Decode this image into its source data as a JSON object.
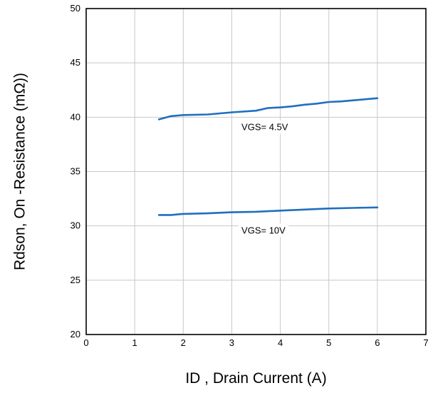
{
  "chart_data": {
    "type": "line",
    "xlabel": "ID , Drain Current (A)",
    "ylabel": "Rdson, On -Resistance (mΩ))",
    "xlim": [
      0,
      7
    ],
    "ylim": [
      20,
      50
    ],
    "x_ticks": [
      0,
      1,
      2,
      3,
      4,
      5,
      6,
      7
    ],
    "y_ticks": [
      20,
      25,
      30,
      35,
      40,
      45,
      50
    ],
    "grid": true,
    "line_color": "#1f6fc0",
    "series": [
      {
        "x": [
          1.5,
          1.75,
          2.0,
          2.5,
          3.0,
          3.5,
          3.75,
          4.0,
          4.25,
          4.5,
          4.75,
          5.0,
          5.25,
          5.5,
          5.75,
          6.0
        ],
        "values": [
          39.8,
          40.1,
          40.2,
          40.25,
          40.45,
          40.6,
          40.85,
          40.9,
          41.0,
          41.15,
          41.25,
          41.4,
          41.45,
          41.55,
          41.65,
          41.75
        ]
      },
      {
        "x": [
          1.5,
          1.75,
          2.0,
          2.5,
          3.0,
          3.5,
          4.0,
          4.5,
          5.0,
          5.5,
          6.0
        ],
        "values": [
          31.0,
          31.0,
          31.1,
          31.15,
          31.25,
          31.3,
          31.4,
          31.5,
          31.6,
          31.65,
          31.7
        ]
      }
    ],
    "annotations": [
      {
        "text": "VGS= 4.5V",
        "x": 3.2,
        "y": 38.8
      },
      {
        "text": "VGS= 10V",
        "x": 3.2,
        "y": 29.3
      }
    ]
  }
}
